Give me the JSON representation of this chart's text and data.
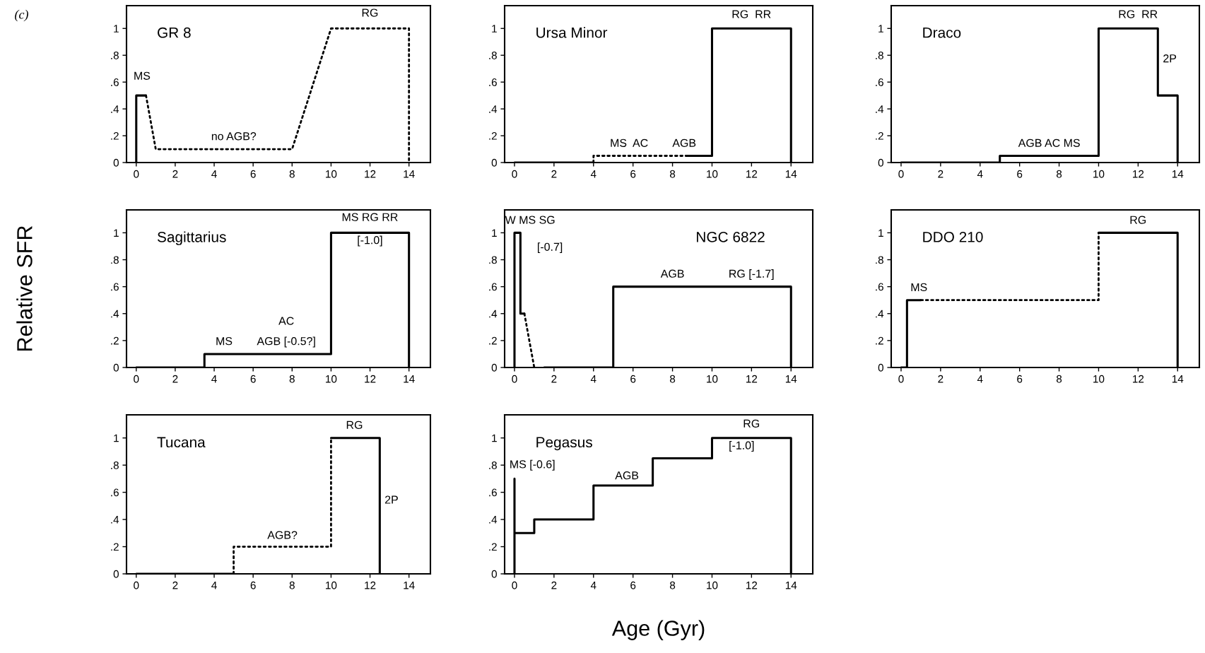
{
  "chart_data": [
    {
      "type": "line",
      "title": "GR 8",
      "annotations": [
        "(c)",
        "MS",
        "no AGB?",
        "RG"
      ],
      "xlim": [
        -0.5,
        15.1
      ],
      "ylim": [
        0,
        1.17
      ],
      "xticks": [
        0,
        2,
        4,
        6,
        8,
        10,
        12,
        14
      ],
      "yticks": [
        0,
        {
          "value": 0.2,
          "label": ".2"
        },
        {
          "value": 0.4,
          "label": ".4"
        },
        {
          "value": 0.6,
          "label": ".6"
        },
        {
          "value": 0.8,
          "label": ".8"
        },
        1
      ],
      "series": [
        {
          "color": "#000000",
          "line_style": "solid",
          "x": [
            0,
            0,
            0.5
          ],
          "values": [
            0,
            0.5,
            0.5
          ]
        },
        {
          "color": "#000000",
          "line_style": "dotted",
          "x": [
            0.5,
            1,
            8,
            10,
            14,
            14
          ],
          "values": [
            0.5,
            0.1,
            0.1,
            1,
            1,
            0
          ]
        }
      ]
    },
    {
      "type": "line",
      "title": "Ursa Minor",
      "annotations": [
        "MS  AC",
        "AGB",
        "RG  RR"
      ],
      "xlim": [
        -0.5,
        15.1
      ],
      "ylim": [
        0,
        1.17
      ],
      "xticks": [
        0,
        2,
        4,
        6,
        8,
        10,
        12,
        14
      ],
      "yticks": [
        0,
        {
          "value": 0.2,
          "label": ".2"
        },
        {
          "value": 0.4,
          "label": ".4"
        },
        {
          "value": 0.6,
          "label": ".6"
        },
        {
          "value": 0.8,
          "label": ".8"
        },
        1
      ],
      "series": [
        {
          "color": "#000000",
          "line_style": "solid",
          "x": [
            0,
            4
          ],
          "values": [
            0,
            0
          ]
        },
        {
          "color": "#000000",
          "line_style": "dotted",
          "x": [
            4,
            4,
            8.8
          ],
          "values": [
            0,
            0.05,
            0.05
          ]
        },
        {
          "color": "#000000",
          "line_style": "solid",
          "x": [
            8.8,
            10,
            10,
            14,
            14
          ],
          "values": [
            0.05,
            0.05,
            1,
            1,
            0
          ]
        }
      ]
    },
    {
      "type": "line",
      "title": "Draco",
      "annotations": [
        "AGB AC MS",
        "RG  RR",
        "2P"
      ],
      "xlim": [
        -0.5,
        15.1
      ],
      "ylim": [
        0,
        1.17
      ],
      "xticks": [
        0,
        2,
        4,
        6,
        8,
        10,
        12,
        14
      ],
      "yticks": [
        0,
        {
          "value": 0.2,
          "label": ".2"
        },
        {
          "value": 0.4,
          "label": ".4"
        },
        {
          "value": 0.6,
          "label": ".6"
        },
        {
          "value": 0.8,
          "label": ".8"
        },
        1
      ],
      "series": [
        {
          "color": "#000000",
          "line_style": "solid",
          "x": [
            0,
            5,
            5,
            10,
            10,
            13,
            13,
            14,
            14
          ],
          "values": [
            0,
            0,
            0.05,
            0.05,
            1,
            1,
            0.5,
            0.5,
            0
          ]
        }
      ]
    },
    {
      "type": "line",
      "title": "Sagittarius",
      "ylabel": "Relative SFR",
      "annotations": [
        "MS",
        "AC",
        "AGB [-0.5?]",
        "MS RG RR",
        "[-1.0]"
      ],
      "xlim": [
        -0.5,
        15.1
      ],
      "ylim": [
        0,
        1.17
      ],
      "xticks": [
        0,
        2,
        4,
        6,
        8,
        10,
        12,
        14
      ],
      "yticks": [
        0,
        {
          "value": 0.2,
          "label": ".2"
        },
        {
          "value": 0.4,
          "label": ".4"
        },
        {
          "value": 0.6,
          "label": ".6"
        },
        {
          "value": 0.8,
          "label": ".8"
        },
        1
      ],
      "series": [
        {
          "color": "#000000",
          "line_style": "solid",
          "x": [
            0,
            3.5,
            3.5,
            10,
            10,
            14,
            14
          ],
          "values": [
            0,
            0,
            0.1,
            0.1,
            1,
            1,
            0
          ]
        }
      ]
    },
    {
      "type": "line",
      "title": "NGC 6822",
      "annotations": [
        "W MS SG",
        "[-0.7]",
        "AGB",
        "RG [-1.7]"
      ],
      "xlim": [
        -0.5,
        15.1
      ],
      "ylim": [
        0,
        1.17
      ],
      "xticks": [
        0,
        2,
        4,
        6,
        8,
        10,
        12,
        14
      ],
      "yticks": [
        0,
        {
          "value": 0.2,
          "label": ".2"
        },
        {
          "value": 0.4,
          "label": ".4"
        },
        {
          "value": 0.6,
          "label": ".6"
        },
        {
          "value": 0.8,
          "label": ".8"
        },
        1
      ],
      "series": [
        {
          "color": "#000000",
          "line_style": "solid",
          "x": [
            0,
            0,
            0.3,
            0.3,
            0.5
          ],
          "values": [
            0,
            1,
            1,
            0.4,
            0.4
          ]
        },
        {
          "color": "#000000",
          "line_style": "dotted",
          "x": [
            0.5,
            1
          ],
          "values": [
            0.4,
            0
          ]
        },
        {
          "color": "#000000",
          "line_style": "solid",
          "x": [
            1.5,
            5,
            5,
            14,
            14
          ],
          "values": [
            0,
            0,
            0.6,
            0.6,
            0
          ]
        }
      ]
    },
    {
      "type": "line",
      "title": "DDO 210",
      "annotations": [
        "MS",
        "RG"
      ],
      "xlim": [
        -0.5,
        15.1
      ],
      "ylim": [
        0,
        1.17
      ],
      "xticks": [
        0,
        2,
        4,
        6,
        8,
        10,
        12,
        14
      ],
      "yticks": [
        0,
        {
          "value": 0.2,
          "label": ".2"
        },
        {
          "value": 0.4,
          "label": ".4"
        },
        {
          "value": 0.6,
          "label": ".6"
        },
        {
          "value": 0.8,
          "label": ".8"
        },
        1
      ],
      "series": [
        {
          "color": "#000000",
          "line_style": "solid",
          "x": [
            0,
            0.3,
            0.3,
            1
          ],
          "values": [
            0,
            0,
            0.5,
            0.5
          ]
        },
        {
          "color": "#000000",
          "line_style": "dotted",
          "x": [
            1,
            10,
            10
          ],
          "values": [
            0.5,
            0.5,
            1
          ]
        },
        {
          "color": "#000000",
          "line_style": "solid",
          "x": [
            10,
            14,
            14
          ],
          "values": [
            1,
            1,
            0
          ]
        }
      ]
    },
    {
      "type": "line",
      "title": "Tucana",
      "annotations": [
        "RG",
        "AGB?",
        "2P"
      ],
      "xlim": [
        -0.5,
        15.1
      ],
      "ylim": [
        0,
        1.17
      ],
      "xticks": [
        0,
        2,
        4,
        6,
        8,
        10,
        12,
        14
      ],
      "yticks": [
        0,
        {
          "value": 0.2,
          "label": ".2"
        },
        {
          "value": 0.4,
          "label": ".4"
        },
        {
          "value": 0.6,
          "label": ".6"
        },
        {
          "value": 0.8,
          "label": ".8"
        },
        1
      ],
      "series": [
        {
          "color": "#000000",
          "line_style": "solid",
          "x": [
            0,
            5
          ],
          "values": [
            0,
            0
          ]
        },
        {
          "color": "#000000",
          "line_style": "dotted",
          "x": [
            5,
            5,
            10,
            10
          ],
          "values": [
            0,
            0.2,
            0.2,
            1
          ]
        },
        {
          "color": "#000000",
          "line_style": "solid",
          "x": [
            10,
            12.5,
            12.5
          ],
          "values": [
            1,
            1,
            0
          ]
        }
      ]
    },
    {
      "type": "line",
      "title": "Pegasus",
      "xlabel": "Age (Gyr)",
      "annotations": [
        "MS [-0.6]",
        "AGB",
        "RG",
        "[-1.0]"
      ],
      "xlim": [
        -0.5,
        15.1
      ],
      "ylim": [
        0,
        1.17
      ],
      "xticks": [
        0,
        2,
        4,
        6,
        8,
        10,
        12,
        14
      ],
      "yticks": [
        0,
        {
          "value": 0.2,
          "label": ".2"
        },
        {
          "value": 0.4,
          "label": ".4"
        },
        {
          "value": 0.6,
          "label": ".6"
        },
        {
          "value": 0.8,
          "label": ".8"
        },
        1
      ],
      "series": [
        {
          "color": "#000000",
          "line_style": "solid",
          "x": [
            0,
            0,
            0,
            1,
            1,
            4,
            4,
            7,
            7,
            10,
            10,
            14,
            14
          ],
          "values": [
            0,
            0.7,
            0.3,
            0.3,
            0.4,
            0.4,
            0.65,
            0.65,
            0.85,
            0.85,
            1,
            1,
            0
          ]
        }
      ]
    }
  ]
}
